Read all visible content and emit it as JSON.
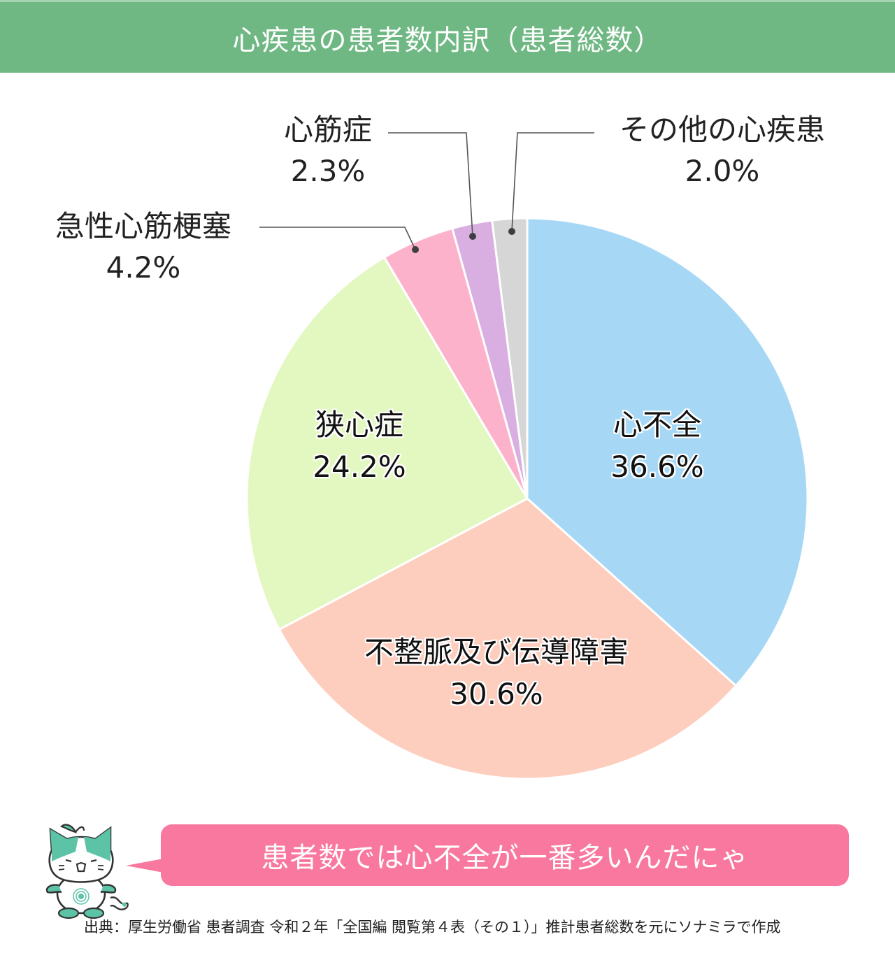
{
  "header": {
    "title": "心疾患の患者数内訳（患者総数）"
  },
  "chart_data": {
    "type": "pie",
    "title": "心疾患の患者数内訳（患者総数）",
    "start_angle": "12 o'clock, clockwise",
    "categories": [
      "心不全",
      "不整脈及び伝導障害",
      "狭心症",
      "急性心筋梗塞",
      "心筋症",
      "その他の心疾患"
    ],
    "values": [
      36.6,
      30.6,
      24.2,
      4.2,
      2.3,
      2.0
    ],
    "value_labels": [
      "36.6%",
      "30.6%",
      "24.2%",
      "4.2%",
      "2.3%",
      "2.0%"
    ],
    "colors": [
      "#a6d8f6",
      "#fdcdbd",
      "#e3f8c1",
      "#fdb2cb",
      "#d8afe0",
      "#d6d6d6"
    ],
    "label_positions": [
      "inside",
      "inside",
      "inside",
      "outside-leader",
      "outside-leader",
      "outside-leader"
    ],
    "legend": "none"
  },
  "labels": {
    "heart_failure": {
      "name": "心不全",
      "value": "36.6%"
    },
    "arrhythmia": {
      "name": "不整脈及び伝導障害",
      "value": "30.6%"
    },
    "angina": {
      "name": "狭心症",
      "value": "24.2%"
    },
    "ami": {
      "name": "急性心筋梗塞",
      "value": "4.2%"
    },
    "cardiomyopathy": {
      "name": "心筋症",
      "value": "2.3%"
    },
    "other": {
      "name": "その他の心疾患",
      "value": "2.0%"
    }
  },
  "callout": {
    "text": "患者数では心不全が一番多いんだにゃ",
    "color": "#f9789f"
  },
  "footer": {
    "source": "出典：厚生労働省 患者調査 令和２年「全国編 閲覧第４表（その１）」推計患者総数を元にソナミラで作成"
  },
  "colors": {
    "header_bg": "#6fb883",
    "mascot_green": "#5cc3a6"
  }
}
